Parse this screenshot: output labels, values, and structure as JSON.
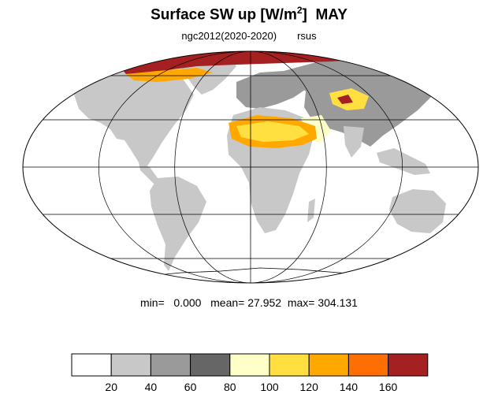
{
  "title": {
    "main": "Surface SW up [W/m",
    "sup": "2",
    "close": "]",
    "month": "MAY"
  },
  "subtitle": {
    "experiment": "ngc2012(2020-2020)",
    "variable": "rsus"
  },
  "stats": {
    "min_label": "min=",
    "min_value": "0.000",
    "mean_label": "mean=",
    "mean_value": "27.952",
    "max_label": "max=",
    "max_value": "304.131"
  },
  "colorbar": {
    "colors": [
      "#ffffff",
      "#c8c8c8",
      "#9a9a9a",
      "#666666",
      "#ffffc8",
      "#ffe040",
      "#ffa800",
      "#ff6e00",
      "#a52020"
    ],
    "tick_labels": [
      "20",
      "40",
      "60",
      "80",
      "100",
      "120",
      "140",
      "160"
    ]
  },
  "map": {
    "projection": "mollweide",
    "land_color": "#c8c8c8",
    "ocean_color": "#ffffff",
    "meridians_deg": [
      -120,
      -60,
      0,
      60,
      120
    ],
    "parallels_deg": [
      -60,
      -30,
      0,
      30,
      60
    ]
  }
}
